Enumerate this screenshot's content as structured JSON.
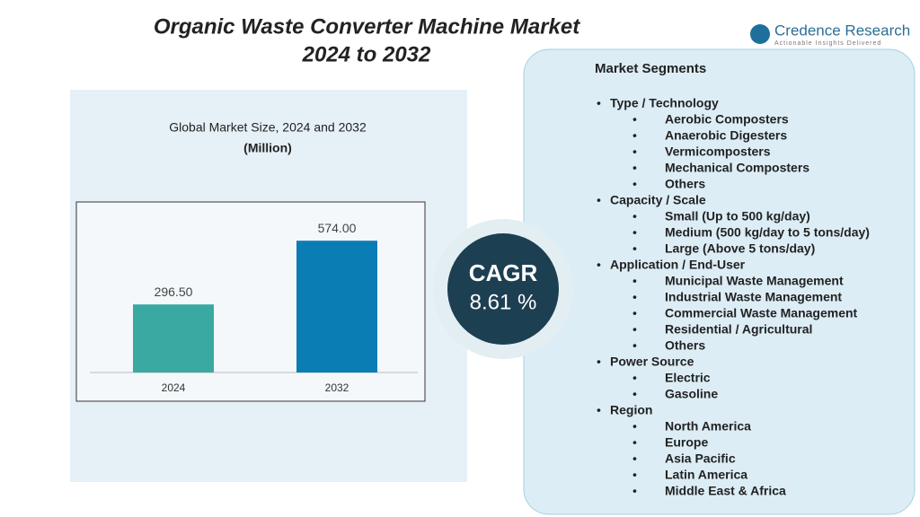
{
  "header": {
    "title_line1": "Organic Waste Converter Machine Market",
    "title_line2": "2024 to 2032",
    "brand": "Credence Research",
    "tagline": "Actionable Insights Delivered"
  },
  "chart_data": {
    "type": "bar",
    "title": "Global Market Size, 2024 and 2032",
    "subtitle": "(Million)",
    "categories": [
      "2024",
      "2032"
    ],
    "values": [
      296.5,
      574.0
    ],
    "value_labels": [
      "296.50",
      "574.00"
    ],
    "colors": [
      "#3aa9a1",
      "#0b7db5"
    ]
  },
  "cagr": {
    "label": "CAGR",
    "value": "8.61 %"
  },
  "segments": {
    "heading": "Market Segments",
    "groups": [
      {
        "name": "Type / Technology",
        "items": [
          "Aerobic Composters",
          "Anaerobic Digesters",
          "Vermicomposters",
          "Mechanical Composters",
          "Others"
        ]
      },
      {
        "name": "Capacity / Scale",
        "items": [
          "Small (Up to 500 kg/day)",
          "Medium (500 kg/day to 5 tons/day)",
          "Large (Above 5 tons/day)"
        ]
      },
      {
        "name": "Application / End-User",
        "items": [
          "Municipal Waste Management",
          "Industrial Waste Management",
          "Commercial Waste Management",
          "Residential / Agricultural",
          "Others"
        ]
      },
      {
        "name": "Power Source",
        "items": [
          "Electric",
          "Gasoline"
        ]
      },
      {
        "name": "Region",
        "items": [
          "North America",
          "Europe",
          "Asia Pacific",
          "Latin America",
          "Middle East & Africa"
        ]
      }
    ]
  }
}
